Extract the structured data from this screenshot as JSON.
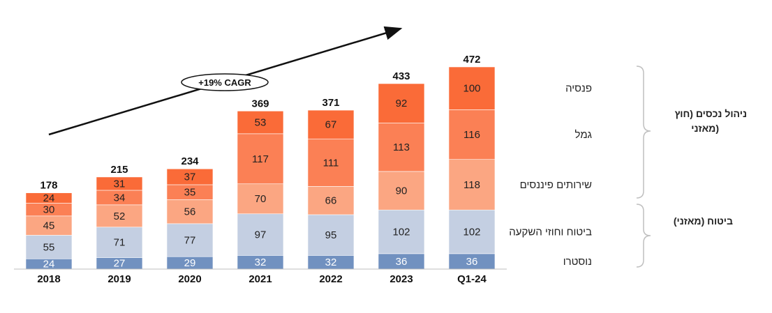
{
  "chart_data": {
    "type": "bar",
    "stacked": true,
    "categories": [
      "2018",
      "2019",
      "2020",
      "2021",
      "2022",
      "2023",
      "Q1-24"
    ],
    "series": [
      {
        "name": "נוסטרו",
        "color": "#7191c0",
        "label_color": "#ffffff",
        "values": [
          24,
          27,
          29,
          32,
          32,
          36,
          36
        ]
      },
      {
        "name": "ביטוח וחוזי השקעה",
        "color": "#c4cfe2",
        "label_color": "#222222",
        "values": [
          55,
          71,
          77,
          97,
          95,
          102,
          102
        ]
      },
      {
        "name": "שירותים פיננסים",
        "color": "#fba682",
        "label_color": "#222222",
        "values": [
          45,
          52,
          56,
          70,
          66,
          90,
          118
        ]
      },
      {
        "name": "גמל",
        "color": "#fb8055",
        "label_color": "#222222",
        "values": [
          30,
          34,
          35,
          117,
          111,
          113,
          116
        ]
      },
      {
        "name": "פנסיה",
        "color": "#fa6b38",
        "label_color": "#222222",
        "values": [
          24,
          31,
          37,
          53,
          67,
          92,
          100
        ]
      }
    ],
    "totals": [
      178,
      215,
      234,
      369,
      371,
      433,
      472
    ],
    "ylim": [
      0,
      480
    ],
    "grid": false,
    "legend_position": "right"
  },
  "annotation": {
    "cagr_label": "+19% CAGR",
    "arrow_direction": "up-right"
  },
  "groups": [
    {
      "label_line1": "ניהול נכסים (חוץ",
      "label_line2": "מאזני)"
    },
    {
      "label_line1": "ביטוח (מאזני)",
      "label_line2": ""
    }
  ]
}
